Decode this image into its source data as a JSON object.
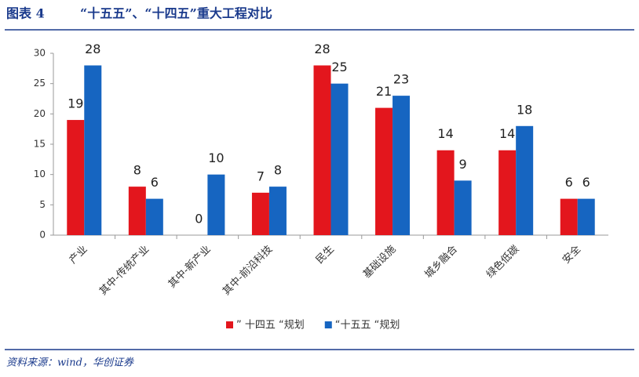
{
  "header": {
    "label": "图表 4",
    "title": "“十五五”、“十四五”重大工程对比"
  },
  "source": "资料来源：wind，华创证券",
  "chart_data": {
    "type": "bar",
    "categories": [
      "产业",
      "其中-传统产业",
      "其中-新产业",
      "其中-前沿科技",
      "民生",
      "基础设施",
      "城乡融合",
      "绿色低碳",
      "安全"
    ],
    "series": [
      {
        "name": "” 十四五 “规划",
        "color": "#e3161d",
        "values": [
          19,
          8,
          0,
          7,
          28,
          21,
          14,
          14,
          6
        ]
      },
      {
        "name": "“十五五 “规划",
        "color": "#1665c1",
        "values": [
          28,
          6,
          10,
          8,
          25,
          23,
          9,
          18,
          6
        ]
      }
    ],
    "ylim": [
      0,
      30
    ],
    "yticks": [
      0,
      5,
      10,
      15,
      20,
      25,
      30
    ],
    "grid": false,
    "legend": "bottom"
  }
}
